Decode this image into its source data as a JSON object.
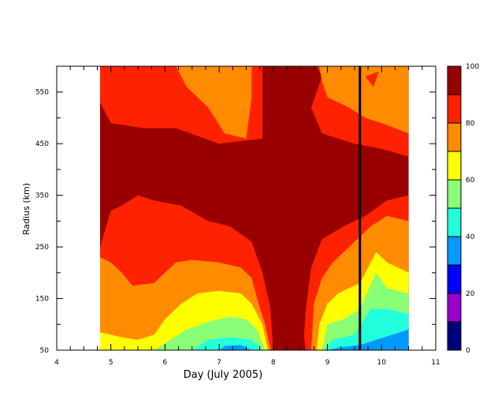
{
  "chart_data": {
    "type": "heatmap",
    "title": "",
    "xlabel": "Day (July 2005)",
    "ylabel": "Radius (km)",
    "xlim": [
      4,
      11
    ],
    "ylim": [
      50,
      600
    ],
    "x_ticks": [
      4,
      5,
      6,
      7,
      8,
      9,
      10,
      11
    ],
    "x_tick_labels": [
      "4",
      "5",
      "6",
      "7",
      "8",
      "9",
      "10",
      "11"
    ],
    "y_ticks": [
      50,
      150,
      250,
      350,
      450,
      550
    ],
    "y_tick_labels": [
      "50",
      "150",
      "250",
      "350",
      "450",
      "550"
    ],
    "data_x_range": [
      4.8,
      10.5
    ],
    "marker_line_x": 9.6,
    "colorbar": {
      "range": [
        0,
        100
      ],
      "tick_values": [
        0,
        20,
        40,
        60,
        80,
        100
      ],
      "tick_labels": [
        "0",
        "20",
        "40",
        "60",
        "80",
        "100"
      ],
      "levels": [
        {
          "min": 0,
          "max": 10,
          "color": "#000080"
        },
        {
          "min": 10,
          "max": 20,
          "color": "#9900cc"
        },
        {
          "min": 20,
          "max": 30,
          "color": "#0000ff"
        },
        {
          "min": 30,
          "max": 40,
          "color": "#0099ff"
        },
        {
          "min": 40,
          "max": 50,
          "color": "#22ffdd"
        },
        {
          "min": 50,
          "max": 60,
          "color": "#88ff77"
        },
        {
          "min": 60,
          "max": 70,
          "color": "#ffff00"
        },
        {
          "min": 70,
          "max": 80,
          "color": "#ff8c00"
        },
        {
          "min": 80,
          "max": 90,
          "color": "#ff2200"
        },
        {
          "min": 90,
          "max": 100,
          "color": "#990000"
        }
      ]
    },
    "contour_regions": [
      {
        "level": 9,
        "points": [
          [
            4.8,
            600
          ],
          [
            10.5,
            600
          ],
          [
            10.5,
            50
          ],
          [
            4.8,
            50
          ]
        ]
      },
      {
        "level": 8,
        "points": [
          [
            4.8,
            600
          ],
          [
            7.8,
            600
          ],
          [
            7.8,
            460
          ],
          [
            7.0,
            450
          ],
          [
            6.2,
            480
          ],
          [
            5.6,
            480
          ],
          [
            5.0,
            490
          ],
          [
            4.8,
            530
          ]
        ]
      },
      {
        "level": 8,
        "points": [
          [
            8.8,
            600
          ],
          [
            10.5,
            600
          ],
          [
            10.5,
            425
          ],
          [
            10.0,
            440
          ],
          [
            9.5,
            450
          ],
          [
            8.9,
            470
          ],
          [
            8.7,
            520
          ],
          [
            8.9,
            580
          ]
        ]
      },
      {
        "level": 8,
        "points": [
          [
            4.8,
            50
          ],
          [
            8.0,
            50
          ],
          [
            7.95,
            130
          ],
          [
            7.8,
            200
          ],
          [
            7.6,
            260
          ],
          [
            7.2,
            290
          ],
          [
            6.8,
            300
          ],
          [
            6.3,
            330
          ],
          [
            5.8,
            340
          ],
          [
            5.5,
            350
          ],
          [
            5.2,
            330
          ],
          [
            5.0,
            320
          ],
          [
            4.8,
            250
          ]
        ]
      },
      {
        "level": 8,
        "points": [
          [
            8.55,
            50
          ],
          [
            10.5,
            50
          ],
          [
            10.5,
            350
          ],
          [
            10.1,
            340
          ],
          [
            9.7,
            310
          ],
          [
            9.3,
            290
          ],
          [
            8.9,
            265
          ],
          [
            8.7,
            210
          ],
          [
            8.6,
            130
          ]
        ]
      },
      {
        "level": 7,
        "points": [
          [
            6.2,
            600
          ],
          [
            7.6,
            600
          ],
          [
            7.6,
            540
          ],
          [
            7.5,
            460
          ],
          [
            7.1,
            470
          ],
          [
            6.8,
            520
          ],
          [
            6.4,
            560
          ]
        ]
      },
      {
        "level": 7,
        "points": [
          [
            8.85,
            600
          ],
          [
            10.5,
            600
          ],
          [
            10.5,
            470
          ],
          [
            10.0,
            490
          ],
          [
            9.7,
            500
          ],
          [
            9.4,
            520
          ],
          [
            9.0,
            540
          ],
          [
            8.9,
            570
          ]
        ]
      },
      {
        "level": 7,
        "points": [
          [
            4.8,
            50
          ],
          [
            7.95,
            50
          ],
          [
            7.85,
            100
          ],
          [
            7.7,
            150
          ],
          [
            7.6,
            190
          ],
          [
            7.4,
            210
          ],
          [
            7.0,
            220
          ],
          [
            6.5,
            225
          ],
          [
            6.2,
            220
          ],
          [
            6.0,
            200
          ],
          [
            5.8,
            180
          ],
          [
            5.4,
            175
          ],
          [
            5.2,
            200
          ],
          [
            5.0,
            220
          ],
          [
            4.8,
            230
          ]
        ]
      },
      {
        "level": 7,
        "points": [
          [
            8.7,
            50
          ],
          [
            10.5,
            50
          ],
          [
            10.5,
            300
          ],
          [
            10.1,
            310
          ],
          [
            9.8,
            290
          ],
          [
            9.4,
            250
          ],
          [
            9.1,
            220
          ],
          [
            8.9,
            190
          ],
          [
            8.75,
            140
          ]
        ]
      },
      {
        "level": 6,
        "points": [
          [
            4.8,
            50
          ],
          [
            7.9,
            50
          ],
          [
            7.8,
            100
          ],
          [
            7.6,
            140
          ],
          [
            7.4,
            160
          ],
          [
            7.0,
            165
          ],
          [
            6.6,
            160
          ],
          [
            6.3,
            140
          ],
          [
            6.0,
            110
          ],
          [
            5.8,
            80
          ],
          [
            5.5,
            70
          ],
          [
            5.2,
            75
          ],
          [
            5.0,
            80
          ],
          [
            4.8,
            85
          ]
        ]
      },
      {
        "level": 6,
        "points": [
          [
            8.8,
            50
          ],
          [
            10.5,
            50
          ],
          [
            10.5,
            200
          ],
          [
            10.1,
            220
          ],
          [
            9.9,
            240
          ],
          [
            9.6,
            180
          ],
          [
            9.2,
            160
          ],
          [
            9.0,
            140
          ],
          [
            8.85,
            100
          ]
        ]
      },
      {
        "level": 5,
        "points": [
          [
            5.8,
            50
          ],
          [
            7.85,
            50
          ],
          [
            7.7,
            90
          ],
          [
            7.5,
            110
          ],
          [
            7.2,
            115
          ],
          [
            6.8,
            105
          ],
          [
            6.4,
            90
          ],
          [
            6.1,
            70
          ]
        ]
      },
      {
        "level": 5,
        "points": [
          [
            8.9,
            50
          ],
          [
            10.5,
            50
          ],
          [
            10.5,
            160
          ],
          [
            10.1,
            170
          ],
          [
            9.9,
            200
          ],
          [
            9.6,
            130
          ],
          [
            9.3,
            110
          ],
          [
            9.0,
            100
          ]
        ]
      },
      {
        "level": 4,
        "points": [
          [
            6.5,
            50
          ],
          [
            7.8,
            50
          ],
          [
            7.6,
            70
          ],
          [
            7.2,
            75
          ],
          [
            6.8,
            70
          ]
        ]
      },
      {
        "level": 4,
        "points": [
          [
            8.95,
            50
          ],
          [
            10.5,
            50
          ],
          [
            10.5,
            120
          ],
          [
            10.1,
            130
          ],
          [
            9.8,
            130
          ],
          [
            9.5,
            80
          ],
          [
            9.1,
            70
          ]
        ]
      },
      {
        "level": 3,
        "points": [
          [
            7.0,
            50
          ],
          [
            7.6,
            50
          ],
          [
            7.4,
            60
          ],
          [
            7.1,
            58
          ]
        ]
      },
      {
        "level": 3,
        "points": [
          [
            9.0,
            50
          ],
          [
            10.5,
            50
          ],
          [
            10.5,
            90
          ],
          [
            10.2,
            80
          ],
          [
            9.9,
            70
          ],
          [
            9.6,
            60
          ],
          [
            9.2,
            55
          ]
        ]
      },
      {
        "level": 9,
        "points": [
          [
            8.0,
            50
          ],
          [
            8.6,
            50
          ],
          [
            8.5,
            130
          ],
          [
            8.5,
            250
          ],
          [
            8.5,
            380
          ],
          [
            8.5,
            470
          ],
          [
            8.6,
            600
          ],
          [
            7.9,
            600
          ],
          [
            8.0,
            470
          ],
          [
            8.0,
            380
          ],
          [
            8.0,
            250
          ],
          [
            7.95,
            130
          ]
        ]
      },
      {
        "level": 8,
        "points": [
          [
            9.7,
            580
          ],
          [
            9.95,
            590
          ],
          [
            9.85,
            560
          ]
        ]
      }
    ]
  }
}
